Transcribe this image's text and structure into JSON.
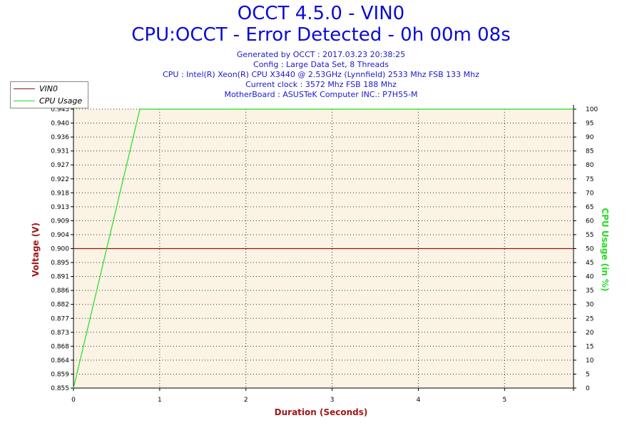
{
  "header": {
    "title": "OCCT 4.5.0 - VIN0",
    "subtitle": "CPU:OCCT - Error Detected - 0h 00m 08s",
    "info_lines": [
      "Generated by OCCT : 2017.03.23 20:38:25",
      "Config : Large Data Set, 8 Threads",
      "CPU : Intel(R) Xeon(R) CPU X3440 @ 2.53GHz (Lynnfield) 2533 Mhz FSB 133 Mhz",
      "Current clock : 3572 Mhz FSB 188 Mhz",
      "MotherBoard : ASUSTeK Computer INC.: P7H55-M"
    ]
  },
  "colors": {
    "title": "#0a0ad8",
    "vin0": "#8b1a1a",
    "cpu": "#22dd22",
    "plot_bg": "#fbf3e4"
  },
  "chart_data": {
    "type": "line",
    "xlabel": "Duration (Seconds)",
    "ylabel_left": "Voltage (V)",
    "ylabel_right": "CPU Usage (in %)",
    "xlim": [
      0,
      5.8
    ],
    "ylim_left": [
      0.855,
      0.945
    ],
    "ylim_right": [
      0,
      100
    ],
    "x_ticks": [
      "0",
      "1",
      "2",
      "3",
      "4",
      "5"
    ],
    "y_ticks_left": [
      "0.855",
      "0.859",
      "0.864",
      "0.868",
      "0.873",
      "0.877",
      "0.882",
      "0.886",
      "0.891",
      "0.895",
      "0.900",
      "0.904",
      "0.909",
      "0.913",
      "0.918",
      "0.922",
      "0.927",
      "0.931",
      "0.936",
      "0.940",
      "0.945"
    ],
    "y_ticks_right": [
      "0",
      "5",
      "10",
      "15",
      "20",
      "25",
      "30",
      "35",
      "40",
      "45",
      "50",
      "55",
      "60",
      "65",
      "70",
      "75",
      "80",
      "85",
      "90",
      "95",
      "100"
    ],
    "grid": true,
    "legend_position": "top-left",
    "series": [
      {
        "name": "VIN0",
        "axis": "left",
        "x": [
          0,
          5.8
        ],
        "values": [
          0.9,
          0.9
        ]
      },
      {
        "name": "CPU Usage",
        "axis": "right",
        "x": [
          0,
          0.77,
          5.8
        ],
        "values": [
          0,
          100,
          100
        ]
      }
    ]
  }
}
